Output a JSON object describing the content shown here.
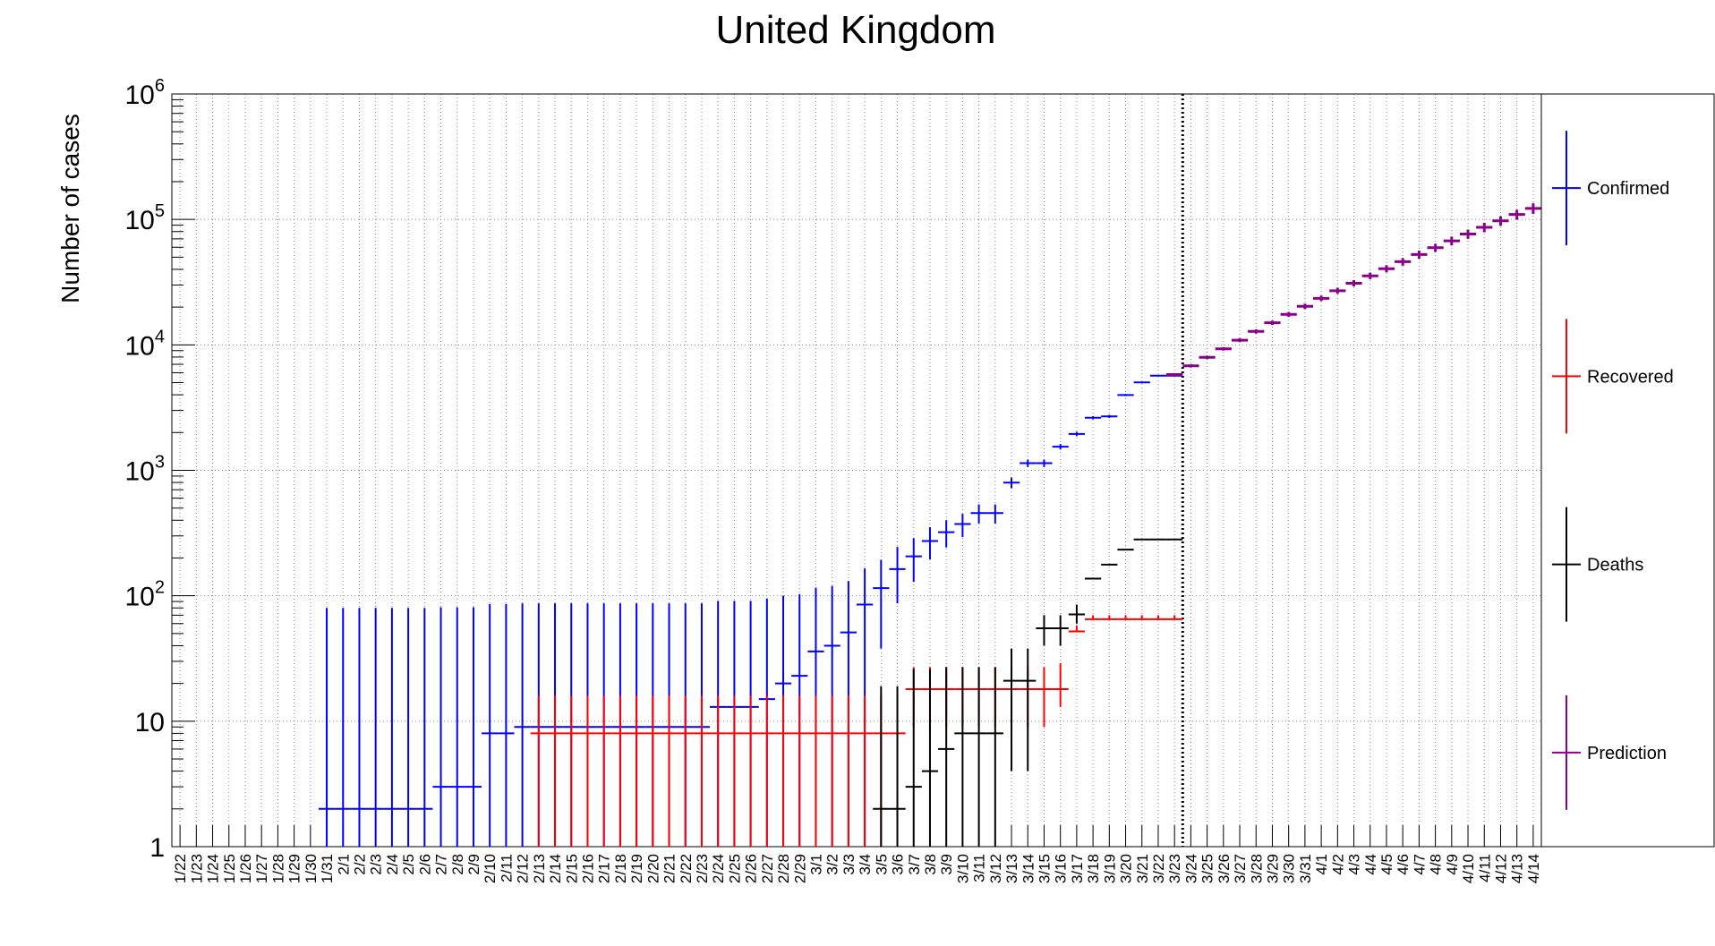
{
  "chart_data": {
    "type": "scatter",
    "title": "United Kingdom",
    "xlabel": "",
    "ylabel": "Number of cases",
    "y_scale": "log",
    "ylim": [
      1,
      1000000
    ],
    "y_ticks": [
      {
        "value": 1,
        "base": "1",
        "exp": ""
      },
      {
        "value": 10,
        "base": "10",
        "exp": ""
      },
      {
        "value": 100,
        "base": "10",
        "exp": "2"
      },
      {
        "value": 1000,
        "base": "10",
        "exp": "3"
      },
      {
        "value": 10000,
        "base": "10",
        "exp": "4"
      },
      {
        "value": 100000,
        "base": "10",
        "exp": "5"
      },
      {
        "value": 1000000,
        "base": "10",
        "exp": "6"
      }
    ],
    "grid": true,
    "legend_position": "right",
    "separator_date": "3/23",
    "x": [
      "1/22",
      "1/23",
      "1/24",
      "1/25",
      "1/26",
      "1/27",
      "1/28",
      "1/29",
      "1/30",
      "1/31",
      "2/1",
      "2/2",
      "2/3",
      "2/4",
      "2/5",
      "2/6",
      "2/7",
      "2/8",
      "2/9",
      "2/10",
      "2/11",
      "2/12",
      "2/13",
      "2/14",
      "2/15",
      "2/16",
      "2/17",
      "2/18",
      "2/19",
      "2/20",
      "2/21",
      "2/22",
      "2/23",
      "2/24",
      "2/25",
      "2/26",
      "2/27",
      "2/28",
      "2/29",
      "3/1",
      "3/2",
      "3/3",
      "3/4",
      "3/5",
      "3/6",
      "3/7",
      "3/8",
      "3/9",
      "3/10",
      "3/11",
      "3/12",
      "3/13",
      "3/14",
      "3/15",
      "3/16",
      "3/17",
      "3/18",
      "3/19",
      "3/20",
      "3/21",
      "3/22",
      "3/23",
      "3/24",
      "3/25",
      "3/26",
      "3/27",
      "3/28",
      "3/29",
      "3/30",
      "3/31",
      "4/1",
      "4/2",
      "4/3",
      "4/4",
      "4/5",
      "4/6",
      "4/7",
      "4/8",
      "4/9",
      "4/10",
      "4/11",
      "4/12",
      "4/13",
      "4/14"
    ],
    "series": [
      {
        "name": "Confirmed",
        "color": "#0000ff",
        "values": [
          0,
          0,
          0,
          0,
          0,
          0,
          0,
          0,
          0,
          2,
          2,
          2,
          2,
          2,
          2,
          2,
          3,
          3,
          3,
          8,
          8,
          9,
          9,
          9,
          9,
          9,
          9,
          9,
          9,
          9,
          9,
          9,
          9,
          13,
          13,
          13,
          15,
          20,
          23,
          36,
          40,
          51,
          85,
          115,
          163,
          206,
          273,
          321,
          373,
          456,
          456,
          798,
          1140,
          1140,
          1543,
          1950,
          2626,
          2689,
          3983,
          5018,
          5683,
          5683
        ],
        "errors": [
          0,
          0,
          0,
          0,
          0,
          0,
          0,
          0,
          0,
          78,
          78,
          78,
          78,
          78,
          78,
          78,
          78,
          78,
          78,
          78,
          78,
          78,
          78,
          78,
          78,
          78,
          78,
          78,
          78,
          78,
          78,
          78,
          78,
          78,
          78,
          78,
          80,
          80,
          80,
          80,
          80,
          80,
          80,
          80,
          80,
          80,
          80,
          80,
          80,
          80,
          80,
          80,
          80,
          80,
          80,
          80,
          80,
          80,
          80,
          80,
          80,
          80
        ],
        "error_band": [
          [
            0,
            0
          ],
          [
            0,
            0
          ],
          [
            0,
            0
          ],
          [
            0,
            0
          ],
          [
            0,
            0
          ],
          [
            0,
            0
          ],
          [
            0,
            0
          ],
          [
            0,
            0
          ],
          [
            0,
            0
          ],
          [
            1,
            80
          ],
          [
            1,
            80
          ],
          [
            1,
            80
          ],
          [
            1,
            80
          ],
          [
            1,
            80
          ],
          [
            1,
            80
          ],
          [
            1,
            80
          ],
          [
            1,
            81
          ],
          [
            1,
            81
          ],
          [
            1,
            81
          ],
          [
            1,
            86
          ],
          [
            1,
            86
          ],
          [
            1,
            87
          ],
          [
            1,
            87
          ],
          [
            1,
            87
          ],
          [
            1,
            87
          ],
          [
            1,
            87
          ],
          [
            1,
            87
          ],
          [
            1,
            87
          ],
          [
            1,
            87
          ],
          [
            1,
            87
          ],
          [
            1,
            87
          ],
          [
            1,
            87
          ],
          [
            1,
            87
          ],
          [
            1,
            91
          ],
          [
            1,
            91
          ],
          [
            1,
            91
          ],
          [
            1,
            95
          ],
          [
            1,
            100
          ],
          [
            1,
            103
          ],
          [
            1,
            116
          ],
          [
            1,
            120
          ],
          [
            1,
            131
          ],
          [
            1,
            165
          ],
          [
            38,
            193
          ],
          [
            87,
            245
          ],
          [
            129,
            288
          ],
          [
            195,
            352
          ],
          [
            243,
            400
          ],
          [
            294,
            450
          ],
          [
            377,
            535
          ],
          [
            377,
            535
          ],
          [
            720,
            876
          ],
          [
            1062,
            1218
          ],
          [
            1062,
            1218
          ],
          [
            1465,
            1621
          ],
          [
            1872,
            2028
          ],
          [
            2548,
            2704
          ],
          [
            2611,
            2767
          ],
          [
            3905,
            4061
          ],
          [
            4940,
            5096
          ],
          [
            5605,
            5761
          ],
          [
            5605,
            5761
          ]
        ]
      },
      {
        "name": "Recovered",
        "color": "#ff0000",
        "values": [
          0,
          0,
          0,
          0,
          0,
          0,
          0,
          0,
          0,
          0,
          0,
          0,
          0,
          0,
          0,
          0,
          0,
          0,
          0,
          0,
          0,
          0,
          8,
          8,
          8,
          8,
          8,
          8,
          8,
          8,
          8,
          8,
          8,
          8,
          8,
          8,
          8,
          8,
          8,
          8,
          8,
          8,
          8,
          8,
          8,
          18,
          18,
          18,
          18,
          18,
          18,
          18,
          18,
          18,
          18,
          52,
          65,
          65,
          65,
          65,
          65,
          65
        ],
        "error_band": [
          [
            0,
            0
          ],
          [
            0,
            0
          ],
          [
            0,
            0
          ],
          [
            0,
            0
          ],
          [
            0,
            0
          ],
          [
            0,
            0
          ],
          [
            0,
            0
          ],
          [
            0,
            0
          ],
          [
            0,
            0
          ],
          [
            0,
            0
          ],
          [
            0,
            0
          ],
          [
            0,
            0
          ],
          [
            0,
            0
          ],
          [
            0,
            0
          ],
          [
            0,
            0
          ],
          [
            0,
            0
          ],
          [
            0,
            0
          ],
          [
            0,
            0
          ],
          [
            0,
            0
          ],
          [
            0,
            0
          ],
          [
            0,
            0
          ],
          [
            0,
            0
          ],
          [
            1,
            16
          ],
          [
            1,
            16
          ],
          [
            1,
            16
          ],
          [
            1,
            16
          ],
          [
            1,
            16
          ],
          [
            1,
            16
          ],
          [
            1,
            16
          ],
          [
            1,
            16
          ],
          [
            1,
            16
          ],
          [
            1,
            16
          ],
          [
            1,
            16
          ],
          [
            1,
            16
          ],
          [
            1,
            16
          ],
          [
            1,
            16
          ],
          [
            1,
            16
          ],
          [
            1,
            16
          ],
          [
            1,
            16
          ],
          [
            1,
            16
          ],
          [
            1,
            16
          ],
          [
            1,
            16
          ],
          [
            1,
            16
          ],
          [
            1,
            16
          ],
          [
            1,
            16
          ],
          [
            9,
            27
          ],
          [
            9,
            27
          ],
          [
            9,
            27
          ],
          [
            9,
            27
          ],
          [
            9,
            27
          ],
          [
            9,
            27
          ],
          [
            9,
            27
          ],
          [
            9,
            27
          ],
          [
            9,
            27
          ],
          [
            13,
            29
          ],
          [
            52,
            58
          ],
          [
            65,
            70
          ],
          [
            65,
            70
          ],
          [
            65,
            70
          ],
          [
            65,
            70
          ],
          [
            65,
            70
          ],
          [
            65,
            70
          ]
        ]
      },
      {
        "name": "Deaths",
        "color": "#000000",
        "values": [
          0,
          0,
          0,
          0,
          0,
          0,
          0,
          0,
          0,
          0,
          0,
          0,
          0,
          0,
          0,
          0,
          0,
          0,
          0,
          0,
          0,
          0,
          0,
          0,
          0,
          0,
          0,
          0,
          0,
          0,
          0,
          0,
          0,
          0,
          0,
          0,
          0,
          0,
          0,
          0,
          0,
          0,
          0,
          2,
          2,
          3,
          4,
          6,
          8,
          8,
          8,
          21,
          21,
          55,
          55,
          71,
          137,
          177,
          233,
          281,
          281,
          281
        ],
        "error_band": [
          [
            0,
            0
          ],
          [
            0,
            0
          ],
          [
            0,
            0
          ],
          [
            0,
            0
          ],
          [
            0,
            0
          ],
          [
            0,
            0
          ],
          [
            0,
            0
          ],
          [
            0,
            0
          ],
          [
            0,
            0
          ],
          [
            0,
            0
          ],
          [
            0,
            0
          ],
          [
            0,
            0
          ],
          [
            0,
            0
          ],
          [
            0,
            0
          ],
          [
            0,
            0
          ],
          [
            0,
            0
          ],
          [
            0,
            0
          ],
          [
            0,
            0
          ],
          [
            0,
            0
          ],
          [
            0,
            0
          ],
          [
            0,
            0
          ],
          [
            0,
            0
          ],
          [
            0,
            0
          ],
          [
            0,
            0
          ],
          [
            0,
            0
          ],
          [
            0,
            0
          ],
          [
            0,
            0
          ],
          [
            0,
            0
          ],
          [
            0,
            0
          ],
          [
            0,
            0
          ],
          [
            0,
            0
          ],
          [
            0,
            0
          ],
          [
            0,
            0
          ],
          [
            0,
            0
          ],
          [
            0,
            0
          ],
          [
            0,
            0
          ],
          [
            0,
            0
          ],
          [
            0,
            0
          ],
          [
            0,
            0
          ],
          [
            0,
            0
          ],
          [
            0,
            0
          ],
          [
            0,
            0
          ],
          [
            0,
            0
          ],
          [
            1,
            19
          ],
          [
            1,
            19
          ],
          [
            1,
            26
          ],
          [
            1,
            26
          ],
          [
            1,
            27
          ],
          [
            1,
            27
          ],
          [
            1,
            27
          ],
          [
            1,
            27
          ],
          [
            4,
            38
          ],
          [
            4,
            38
          ],
          [
            40,
            70
          ],
          [
            40,
            70
          ],
          [
            60,
            85
          ],
          [
            137,
            137
          ],
          [
            177,
            177
          ],
          [
            233,
            233
          ],
          [
            281,
            281
          ],
          [
            281,
            281
          ],
          [
            281,
            281
          ]
        ]
      },
      {
        "name": "Prediction",
        "color": "#8b008b",
        "start_index": 61,
        "values": [
          5800,
          6800,
          7950,
          9300,
          10900,
          12800,
          15000,
          17500,
          20300,
          23500,
          27000,
          31000,
          35500,
          40500,
          46000,
          52500,
          59500,
          67500,
          76500,
          86500,
          97500,
          109500,
          122500
        ],
        "error_band": [
          [
            5650,
            5950
          ],
          [
            6600,
            7000
          ],
          [
            7700,
            8200
          ],
          [
            9000,
            9600
          ],
          [
            10500,
            11300
          ],
          [
            12300,
            13300
          ],
          [
            14400,
            15600
          ],
          [
            16700,
            18300
          ],
          [
            19300,
            21300
          ],
          [
            22300,
            24700
          ],
          [
            25500,
            28500
          ],
          [
            29200,
            32800
          ],
          [
            33300,
            37700
          ],
          [
            37800,
            43200
          ],
          [
            42800,
            49200
          ],
          [
            48600,
            56400
          ],
          [
            55000,
            64000
          ],
          [
            62000,
            73000
          ],
          [
            70000,
            83000
          ],
          [
            79000,
            94000
          ],
          [
            89000,
            106000
          ],
          [
            99500,
            119500
          ],
          [
            110500,
            134500
          ]
        ]
      }
    ]
  }
}
